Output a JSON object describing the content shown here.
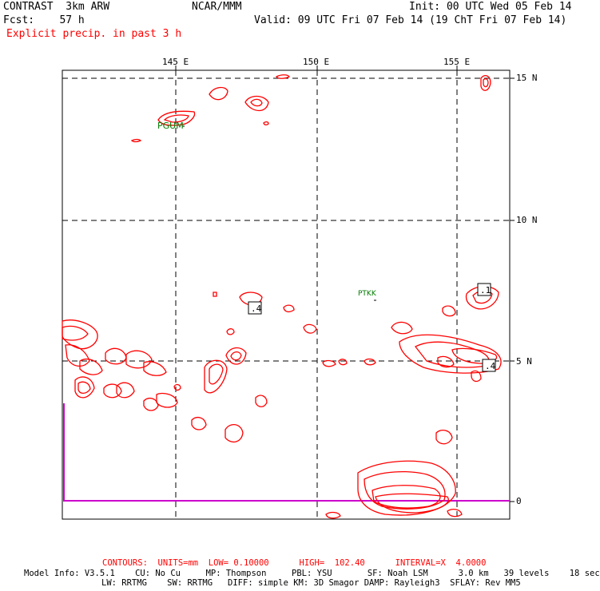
{
  "header": {
    "model_title": "CONTRAST  3km ARW",
    "center": "NCAR/MMM",
    "init": "Init: 00 UTC Wed 05 Feb 14",
    "fcst": "Fcst:    57 h",
    "valid": "Valid: 09 UTC Fri 07 Feb 14 (19 ChT Fri 07 Feb 14)",
    "field": "Explicit precip. in past 3 h"
  },
  "axes": {
    "lon_labels": [
      "145 E",
      "150 E",
      "155 E"
    ],
    "lat_labels": [
      "15 N",
      "10 N",
      "5 N",
      "0"
    ]
  },
  "stations": [
    "PGUM",
    "PTKK"
  ],
  "contour_labels": [
    ".1",
    ".4",
    ".4"
  ],
  "footer": {
    "contours": "CONTOURS:  UNITS=mm  LOW= 0.10000      HIGH=  102.40      INTERVAL=X  4.0000",
    "model_info": "Model Info: V3.5.1    CU: No Cu     MP: Thompson     PBL: YSU       SF: Noah LSM      3.0 km   39 levels    18 sec",
    "physics": "LW: RRTMG    SW: RRTMG   DIFF: simple KM: 3D Smagor DAMP: Rayleigh3  SFLAY: Rev MM5"
  },
  "colors": {
    "contour": "#ff0000",
    "boundary": "#cc00cc",
    "station": "#007a00"
  }
}
